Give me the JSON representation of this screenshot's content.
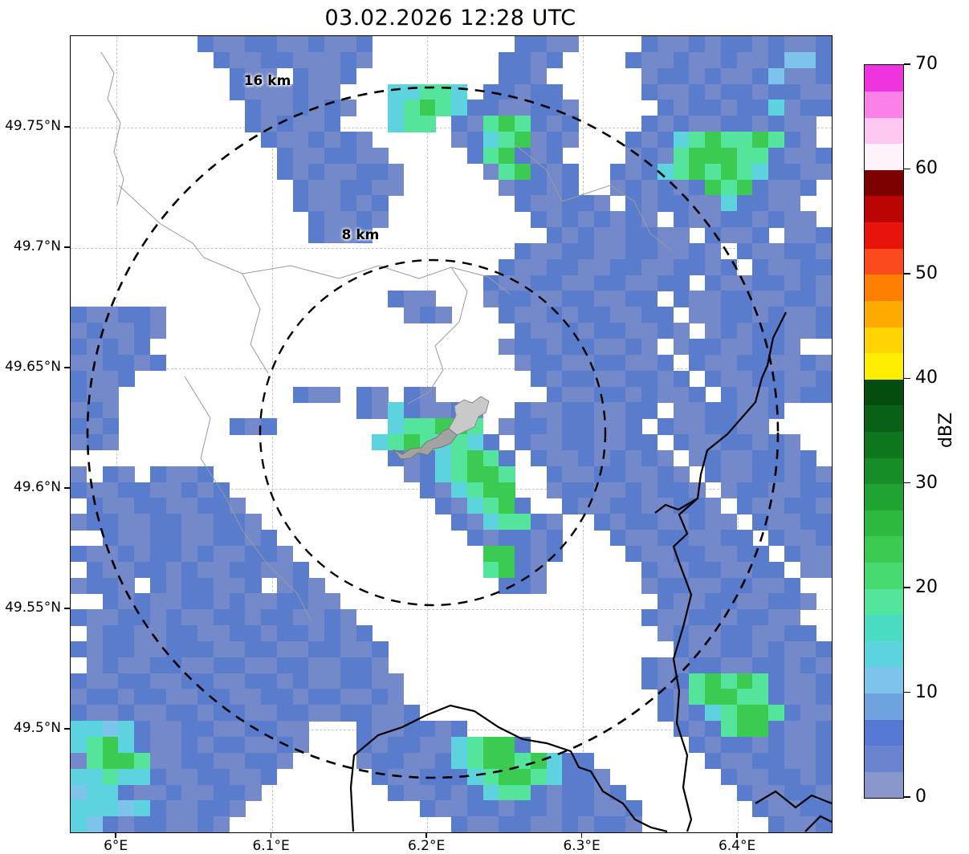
{
  "title": "03.02.2026 12:28 UTC",
  "axes": {
    "x": {
      "range": [
        5.9705,
        6.4604
      ],
      "ticks": [
        {
          "value": 6.0,
          "label": "6°E"
        },
        {
          "value": 6.1,
          "label": "6.1°E"
        },
        {
          "value": 6.2,
          "label": "6.2°E"
        },
        {
          "value": 6.3,
          "label": "6.3°E"
        },
        {
          "value": 6.4,
          "label": "6.4°E"
        }
      ]
    },
    "y": {
      "range": [
        49.4573,
        49.788
      ],
      "ticks": [
        {
          "value": 49.75,
          "label": "49.75°N"
        },
        {
          "value": 49.7,
          "label": "49.7°N"
        },
        {
          "value": 49.65,
          "label": "49.65°N"
        },
        {
          "value": 49.6,
          "label": "49.6°N"
        },
        {
          "value": 49.55,
          "label": "49.55°N"
        },
        {
          "value": 49.5,
          "label": "49.5°N"
        }
      ]
    }
  },
  "range_rings": {
    "outer_label": "16 km",
    "inner_label": "8 km",
    "radii_km": [
      8,
      16
    ]
  },
  "colorbar": {
    "label": "dBZ",
    "min": 0,
    "max": 70,
    "tick_values": [
      0,
      10,
      20,
      30,
      40,
      50,
      60,
      70
    ],
    "segment_step_dbz": 2.5,
    "segment_colors": [
      "#8a97cd",
      "#6b84cf",
      "#5578d4",
      "#6fa3e0",
      "#7cc4ea",
      "#5ed3e0",
      "#4adcc3",
      "#55e49b",
      "#47da70",
      "#3bcb52",
      "#2db83e",
      "#21a332",
      "#178d28",
      "#0e771e",
      "#086114",
      "#054d0e",
      "#ffee00",
      "#ffd400",
      "#ffaa00",
      "#ff7f00",
      "#fb4a1c",
      "#e81309",
      "#bb0505",
      "#7d0101",
      "#fdf3fb",
      "#fec7f1",
      "#fb80e8",
      "#ef34df"
    ]
  },
  "chart_data": {
    "type": "heatmap",
    "title": "03.02.2026 12:28 UTC",
    "value_units": "dBZ",
    "x_axis": "longitude_deg_E",
    "x_range": [
      5.9705,
      6.4604
    ],
    "y_axis": "latitude_deg_N",
    "y_range": [
      49.4573,
      49.788
    ],
    "grid_cols": 48,
    "grid_rows": 50,
    "encoding": "each row = 6 chunks of 8 chars; '.' = no echo, chars map to dBZ via palette",
    "palette": [
      {
        "char": "1",
        "dbz_range": "0-4",
        "color": "#7489c9"
      },
      {
        "char": "2",
        "dbz_range": "4-8",
        "color": "#5a7ccd"
      },
      {
        "char": "3",
        "dbz_range": "8-12",
        "color": "#7cc4ea"
      },
      {
        "char": "4",
        "dbz_range": "12-16",
        "color": "#5ed3e0"
      },
      {
        "char": "5",
        "dbz_range": "16-20",
        "color": "#55e49b"
      },
      {
        "char": "6",
        "dbz_range": "20-24",
        "color": "#3bcb52"
      }
    ],
    "rows": [
      [
        "........",
        "21122112",
        "112.....",
        "....2211",
        "....2112",
        "12212112"
      ],
      [
        "........",
        ".2112211",
        "121.....",
        "...2212.",
        "...21121",
        "12112332"
      ],
      [
        "........",
        "..211.21",
        "12......",
        "...221..",
        "....1221",
        "21123112"
      ],
      [
        "........",
        "..211121",
        "1...4455",
        "4.22122.",
        "....2112",
        "12212211"
      ],
      [
        "........",
        "...21121",
        "21..4565",
        "42211221",
        ".....212",
        "21224122"
      ],
      [
        "........",
        "...21211",
        "2...455.",
        "21565212",
        "....2121",
        "1221211."
      ],
      [
        "........",
        "....2112",
        "121.....",
        "12456121",
        "...21245",
        "6556521."
      ],
      [
        "........",
        ".....211",
        "2211....",
        ".256212.",
        "...12156",
        "66552112"
      ],
      [
        "........",
        ".....212",
        "11221...",
        "..156212",
        "..212456",
        "56542211"
      ],
      [
        "........",
        "......21",
        "12211...",
        "...12212",
        "..121212",
        "6562112."
      ],
      [
        "........",
        "......21",
        "1212....",
        "....2112",
        "21.21221",
        "142211.."
      ],
      [
        "........",
        ".......2",
        "1121....",
        ".....212",
        "12121.21",
        "1221211."
      ],
      [
        "........",
        ".......2",
        "112.....",
        "......21",
        "2112211.",
        "2112.112"
      ],
      [
        "........",
        "........",
        "........",
        "....2112",
        "21122112",
        "1.211221"
      ],
      [
        "........",
        "........",
        "........",
        "...21122",
        "11221122",
        "12.21122"
      ],
      [
        "........",
        "........",
        "........",
        "..211221",
        "1221122.",
        "21122121"
      ],
      [
        "........",
        "........",
        "....211.",
        "..122112",
        "21122.21",
        "12211221"
      ],
      [
        "211221..",
        "........",
        ".....121",
        "...21121",
        "221122.1",
        "12212112"
      ],
      [
        "121121..",
        "........",
        "........",
        "....2112",
        "1221121.",
        "12122112"
      ],
      [
        "21212...",
        "........",
        "........",
        "...12212",
        "21121.12",
        "211221.."
      ],
      [
        "112212..",
        "........",
        "........",
        "....1221",
        "122112.2",
        "11221121"
      ],
      [
        "2112....",
        "........",
        "........",
        ".....212",
        "2112212.",
        "21122112"
      ],
      [
        "211.....",
        "......21",
        "1.21.21.",
        "......21",
        "12212112",
        ".2112122"
      ],
      [
        "121.....",
        "........",
        "..214211",
        "21..2112",
        "21122.11",
        "22112..."
      ],
      [
        "212.....",
        "..212...",
        "....4556",
        "65.12212",
        "2112.211",
        "2211...."
      ],
      [
        "121.....",
        "........",
        "...45654",
        "542.2112",
        "21122.21",
        "122121.."
      ],
      [
        "........",
        "........",
        "....2124",
        "5652.211",
        "212121.1",
        "2112212."
      ],
      [
        "1.21.211",
        "2.......",
        ".....124",
        "5665..21",
        "1221121.",
        "21122121"
      ],
      [
        "21122112",
        "12......",
        "......21",
        "4566..12",
        "21121221",
        ".1221122"
      ],
      [
        ".2112211",
        "221.....",
        ".......2",
        "14562..2",
        "11221122",
        "1.211221"
      ],
      [
        "12211221",
        "1221....",
        "........",
        "2145521.",
        ".2122112",
        "11.21122"
      ],
      [
        "..211221",
        "12212...",
        "........",
        ".212212.",
        "..211221",
        "122.2112"
      ],
      [
        "21121221",
        "211221..",
        "........",
        "..66212.",
        "...21122",
        "1122.211"
      ],
      [
        ".2112212",
        "1122112.",
        "........",
        "..5621..",
        "....2112",
        "21122.11"
      ],
      [
        "1221.212",
        "2112.121",
        "........",
        "...221..",
        "....1221",
        "122112.."
      ],
      [
        "..212112",
        "21211221",
        "1.......",
        "........",
        ".....211",
        "2211221."
      ],
      [
        "21122121",
        "12212211",
        "21......",
        "........",
        "....2112",
        "212211.."
      ],
      [
        ".1221122",
        "11221221",
        "212.....",
        "........",
        ".....121",
        "1221122."
      ],
      [
        "21221122",
        "21122112",
        "2112....",
        "........",
        "......21",
        "12212112"
      ],
      [
        ".1211221",
        "12211221",
        "1221....",
        "........",
        "....2112",
        "21122121"
      ],
      [
        "21122112",
        "21122121",
        "12211...",
        "........",
        "....2125",
        "65652112"
      ],
      [
        "12212211",
        "22112212",
        "21121...",
        "........",
        ".....215",
        "66552112"
      ],
      [
        "21121122",
        "12211221",
        "122112..",
        "........",
        ".....212",
        "45665211"
      ],
      [
        "44342112",
        "2112211.",
        "..211221",
        "2.......",
        "......21",
        "25662112"
      ],
      [
        "45642112",
        "1221121.",
        "..212211",
        "45662...",
        ".......2",
        "12212112"
      ],
      [
        "15665112",
        "211221..",
        "..122112",
        "45665642",
        "2.......",
        "21122112"
      ],
      [
        "44544211",
        "22112...",
        "...21122",
        "24566542",
        "21......",
        ".2112212"
      ],
      [
        "34421121",
        "1221....",
        "....2112",
        "12455212",
        "212.....",
        "..211221"
      ],
      [
        "44434211",
        "221.....",
        "......21",
        "12212212",
        "2112....",
        "...21122"
      ],
      [
        "43212211",
        "21......",
        "........",
        "21122112",
        "1221....",
        "....2112"
      ]
    ]
  }
}
